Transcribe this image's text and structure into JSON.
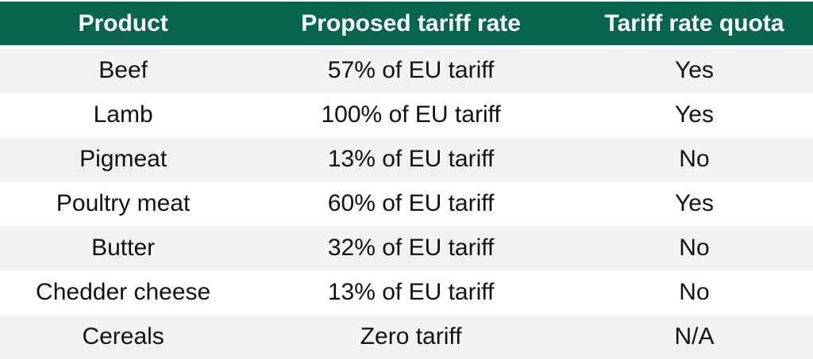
{
  "chart_data": {
    "type": "table",
    "columns": [
      "Product",
      "Proposed tariff rate",
      "Tariff rate quota"
    ],
    "rows": [
      [
        "Beef",
        "57% of EU tariff",
        "Yes"
      ],
      [
        "Lamb",
        "100% of EU tariff",
        "Yes"
      ],
      [
        "Pigmeat",
        "13% of EU tariff",
        "No"
      ],
      [
        "Poultry meat",
        "60% of EU tariff",
        "Yes"
      ],
      [
        "Butter",
        "32% of EU tariff",
        "No"
      ],
      [
        "Chedder cheese",
        "13% of EU tariff",
        "No"
      ],
      [
        "Cereals",
        "Zero tariff",
        "N/A"
      ]
    ],
    "layout": {
      "header_position": "top",
      "row_striping": "odd-rows-gray",
      "text_align": "center"
    }
  },
  "colors": {
    "header_bg": "#076649",
    "header_text": "#ffffff",
    "row_bg": "#ffffff",
    "row_alt_bg": "#f2f2f2",
    "text": "#111111",
    "page_bg": "#ffffff"
  }
}
